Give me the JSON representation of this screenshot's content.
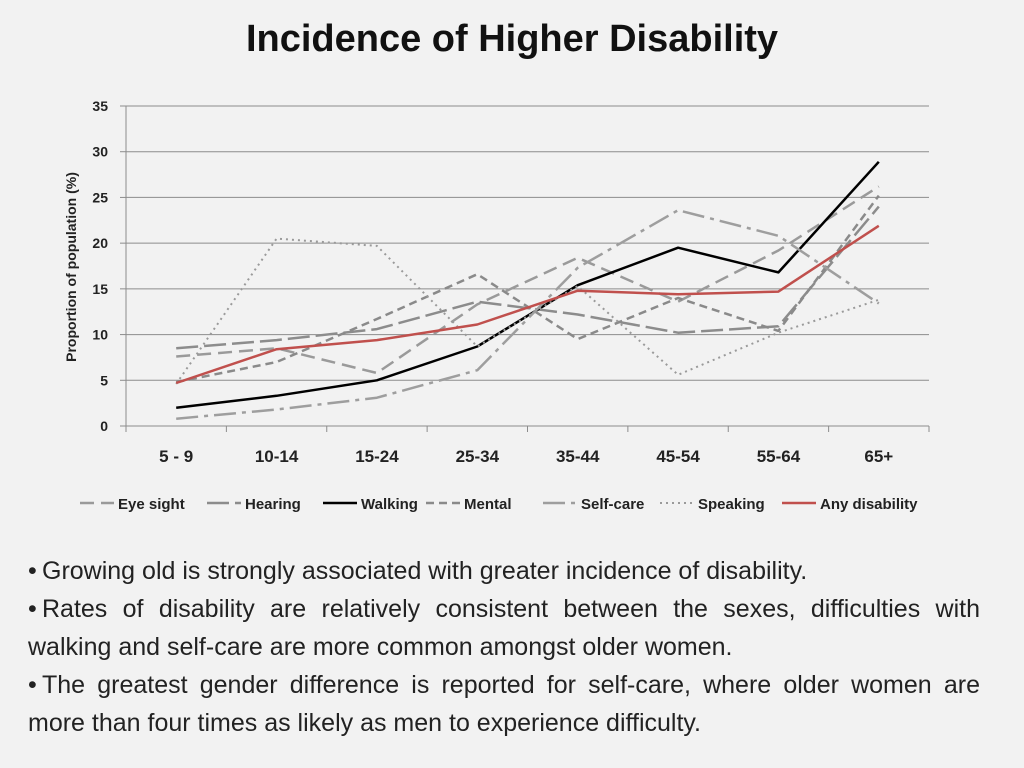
{
  "slide": {
    "title": "Incidence of Higher Disability",
    "bullets": [
      "Growing old is strongly associated with greater incidence of disability.",
      "Rates of disability are relatively consistent between the sexes, difficulties with walking and self-care are more common amongst older women.",
      "The greatest gender difference is reported for self-care, where older women are more than four times as likely as men to experience difficulty."
    ]
  },
  "chart_data": {
    "type": "line",
    "title": "Incidence of Higher Disability",
    "xlabel": "",
    "ylabel": "Proportion of population (%)",
    "categories": [
      "5 - 9",
      "10-14",
      "15-24",
      "25-34",
      "35-44",
      "45-54",
      "55-64",
      "65+"
    ],
    "ylim": [
      0,
      35
    ],
    "yticks": [
      0,
      5,
      10,
      15,
      20,
      25,
      30,
      35
    ],
    "grid": true,
    "legend": "bottom",
    "series": [
      {
        "name": "Eye sight",
        "values": [
          7.6,
          8.5,
          5.8,
          13.3,
          18.4,
          13.6,
          19.2,
          26.2
        ],
        "color": "#9a9a9a",
        "dash": "14,7",
        "width": 2.5
      },
      {
        "name": "Hearing",
        "values": [
          8.5,
          9.4,
          10.6,
          13.6,
          12.2,
          10.2,
          10.9,
          24.0
        ],
        "color": "#8c8c8c",
        "dash": "22,6",
        "width": 2.5
      },
      {
        "name": "Walking",
        "values": [
          2.0,
          3.3,
          5.0,
          8.7,
          15.4,
          19.5,
          16.8,
          28.9
        ],
        "color": "#000000",
        "dash": "",
        "width": 2.5
      },
      {
        "name": "Mental",
        "values": [
          4.8,
          7.0,
          11.7,
          16.6,
          9.5,
          14.0,
          10.4,
          25.2
        ],
        "color": "#8a8a8a",
        "dash": "8,5",
        "width": 2.5
      },
      {
        "name": "Self-care",
        "values": [
          0.8,
          1.8,
          3.1,
          6.1,
          17.3,
          23.6,
          20.8,
          13.4
        ],
        "color": "#9e9e9e",
        "dash": "22,6,4,6",
        "width": 2.5
      },
      {
        "name": "Speaking",
        "values": [
          4.6,
          20.5,
          19.7,
          8.7,
          15.3,
          5.6,
          10.2,
          13.8
        ],
        "color": "#9a9a9a",
        "dash": "2,4",
        "width": 2
      },
      {
        "name": "Any disability",
        "values": [
          4.7,
          8.4,
          9.4,
          11.1,
          14.8,
          14.4,
          14.7,
          21.9
        ],
        "color": "#c0504d",
        "dash": "",
        "width": 2.5
      }
    ]
  }
}
